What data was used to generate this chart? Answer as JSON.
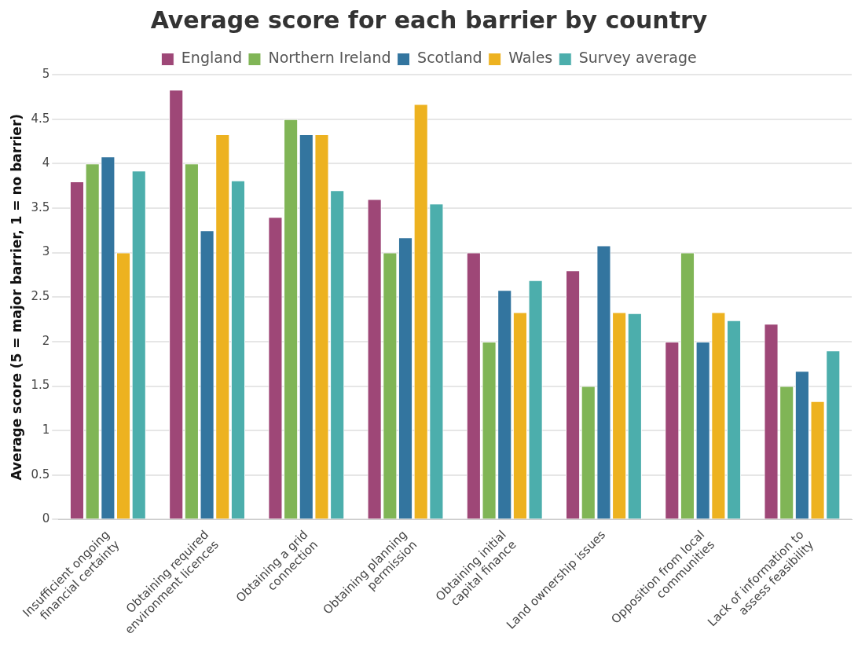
{
  "chart_data": {
    "type": "bar",
    "title": "Average score for each barrier by country",
    "ylabel": "Average score (5 = major barrier, 1 = no barrier)",
    "categories": [
      "Insufficient ongoing financial certainty",
      "Obtaining required environment licences",
      "Obtaining a grid connection",
      "Obtaining planning permission",
      "Obtaining initial capital finance",
      "Land ownership issues",
      "Opposition from local communities",
      "Lack of information to assess feasibility"
    ],
    "series": [
      {
        "name": "England",
        "color": "#9e4777",
        "values": [
          3.8,
          4.83,
          3.4,
          3.6,
          3.0,
          2.8,
          2.0,
          2.2
        ]
      },
      {
        "name": "Northern Ireland",
        "color": "#80b556",
        "values": [
          4.0,
          4.0,
          4.5,
          3.0,
          2.0,
          1.5,
          3.0,
          1.5
        ]
      },
      {
        "name": "Scotland",
        "color": "#33759f",
        "values": [
          4.08,
          3.25,
          4.33,
          3.17,
          2.58,
          3.08,
          2.0,
          1.67
        ]
      },
      {
        "name": "Wales",
        "color": "#edb220",
        "values": [
          3.0,
          4.33,
          4.33,
          4.67,
          2.33,
          2.33,
          2.33,
          1.33
        ]
      },
      {
        "name": "Survey average",
        "color": "#4caeac",
        "values": [
          3.92,
          3.81,
          3.7,
          3.55,
          2.69,
          2.32,
          2.24,
          1.9
        ]
      }
    ],
    "ylim": [
      0,
      5
    ],
    "yticks": [
      0,
      0.5,
      1,
      1.5,
      2,
      2.5,
      3,
      3.5,
      4,
      4.5,
      5
    ],
    "grid": "y",
    "legend": "top"
  }
}
